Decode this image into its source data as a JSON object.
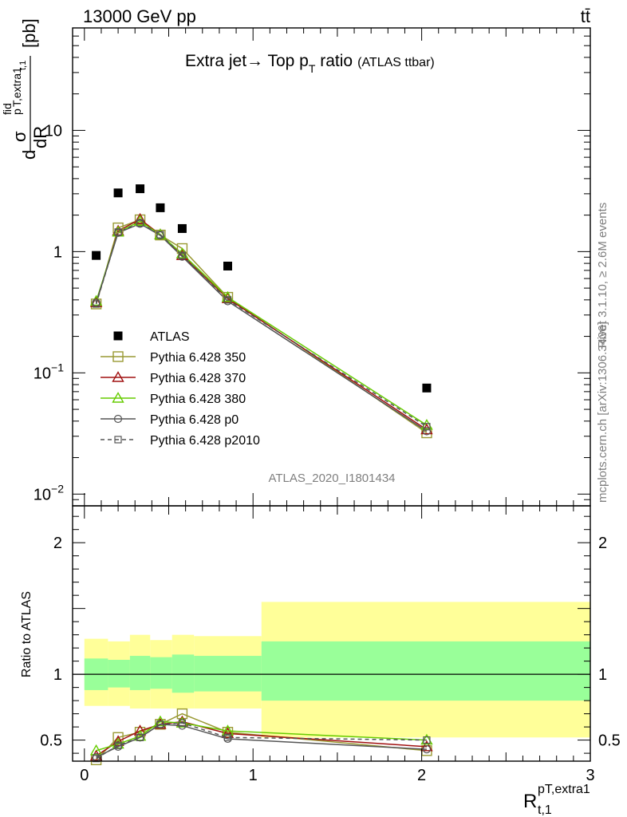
{
  "header": {
    "energy_label": "13000 GeV pp",
    "process_label": "tt̄"
  },
  "side_labels": {
    "rivet": "Rivet 3.1.10, ≥ 2.6M events",
    "mcplots": "mcplots.cern.ch [arXiv:1306.3436]"
  },
  "chart_data": [
    {
      "type": "scatter",
      "title": "Extra jet→ Top p",
      "title_sub": "T",
      "title_tail": " ratio",
      "subtitle": "(ATLAS ttbar)",
      "analysis_id": "ATLAS_2020_I1801434",
      "ylabel": "dσ/dR [pb]",
      "ylabel_parts": {
        "d1": "d",
        "sigma": "σ",
        "sup": "fid",
        "sub": "p",
        "sub2": "T,extra1",
        "sub3": "t,1",
        "dR": "dR",
        "unit": "[pb]"
      },
      "yscale": "log",
      "xlim": [
        -0.07,
        3.0
      ],
      "ylim": [
        0.008,
        70
      ],
      "y_ticks": [
        {
          "value": 0.01,
          "base": "10",
          "exp": "−2"
        },
        {
          "value": 0.1,
          "base": "10",
          "exp": "−1"
        },
        {
          "value": 1,
          "base": "1",
          "exp": ""
        },
        {
          "value": 10,
          "base": "10",
          "exp": ""
        }
      ],
      "legend_position": "left",
      "series": [
        {
          "name": "ATLAS",
          "marker": "square-filled",
          "color": "#000000",
          "x": [
            0.07,
            0.2,
            0.33,
            0.45,
            0.58,
            0.85,
            2.03
          ],
          "y": [
            0.93,
            3.05,
            3.3,
            2.3,
            1.55,
            0.76,
            0.075
          ]
        },
        {
          "name": "Pythia 6.428 350",
          "marker": "square-open",
          "color": "#999933",
          "x": [
            0.07,
            0.2,
            0.33,
            0.45,
            0.58,
            0.85,
            2.03
          ],
          "y": [
            0.37,
            1.57,
            1.83,
            1.37,
            1.06,
            0.42,
            0.032
          ]
        },
        {
          "name": "Pythia 6.428 370",
          "marker": "triangle-open",
          "color": "#a01010",
          "x": [
            0.07,
            0.2,
            0.33,
            0.45,
            0.58,
            0.85,
            2.03
          ],
          "y": [
            0.38,
            1.48,
            1.85,
            1.38,
            0.93,
            0.41,
            0.034
          ]
        },
        {
          "name": "Pythia 6.428 380",
          "marker": "triangle-open",
          "color": "#66cc00",
          "x": [
            0.07,
            0.2,
            0.33,
            0.45,
            0.58,
            0.85,
            2.03
          ],
          "y": [
            0.39,
            1.45,
            1.78,
            1.38,
            0.96,
            0.42,
            0.037
          ]
        },
        {
          "name": "Pythia 6.428 p0",
          "marker": "circle-open",
          "color": "#555555",
          "x": [
            0.07,
            0.2,
            0.33,
            0.45,
            0.58,
            0.85,
            2.03
          ],
          "y": [
            0.38,
            1.43,
            1.7,
            1.36,
            0.91,
            0.39,
            0.033
          ]
        },
        {
          "name": "Pythia 6.428 p2010",
          "marker": "square-open-small",
          "dashed": true,
          "color": "#555555",
          "x": [
            0.07,
            0.2,
            0.33,
            0.45,
            0.58,
            0.85,
            2.03
          ],
          "y": [
            0.37,
            1.45,
            1.72,
            1.38,
            0.93,
            0.4,
            0.036
          ]
        }
      ]
    },
    {
      "type": "line",
      "ylabel": "Ratio to ATLAS",
      "xlabel": "R",
      "xlabel_sup": "pT,extra1",
      "xlabel_sub": "t,1",
      "xlim": [
        -0.07,
        3.0
      ],
      "ylim": [
        0.34,
        2.28
      ],
      "x_ticks": [
        "0",
        "1",
        "2",
        "3"
      ],
      "y_ticks": [
        "0.5",
        "1",
        "2"
      ],
      "bands": {
        "x_edges": [
          0.0,
          0.14,
          0.27,
          0.39,
          0.52,
          0.65,
          1.05,
          3.0
        ],
        "yellow_lo": [
          0.76,
          0.76,
          0.74,
          0.74,
          0.74,
          0.74,
          0.52
        ],
        "yellow_hi": [
          1.27,
          1.25,
          1.3,
          1.26,
          1.3,
          1.29,
          1.55
        ],
        "green_lo": [
          0.88,
          0.9,
          0.88,
          0.89,
          0.86,
          0.87,
          0.8
        ],
        "green_hi": [
          1.12,
          1.11,
          1.14,
          1.13,
          1.15,
          1.14,
          1.25
        ]
      },
      "series": [
        {
          "name": "Pythia 6.428 350",
          "color": "#999933",
          "x": [
            0.07,
            0.2,
            0.33,
            0.45,
            0.58,
            0.85,
            2.03
          ],
          "y": [
            0.35,
            0.52,
            0.56,
            0.62,
            0.7,
            0.56,
            0.42
          ]
        },
        {
          "name": "Pythia 6.428 370",
          "color": "#a01010",
          "x": [
            0.07,
            0.2,
            0.33,
            0.45,
            0.58,
            0.85,
            2.03
          ],
          "y": [
            0.38,
            0.49,
            0.57,
            0.62,
            0.64,
            0.55,
            0.45
          ]
        },
        {
          "name": "Pythia 6.428 380",
          "color": "#66cc00",
          "x": [
            0.07,
            0.2,
            0.33,
            0.45,
            0.58,
            0.85,
            2.03
          ],
          "y": [
            0.42,
            0.47,
            0.53,
            0.64,
            0.63,
            0.57,
            0.5
          ]
        },
        {
          "name": "Pythia 6.428 p0",
          "color": "#555555",
          "x": [
            0.07,
            0.2,
            0.33,
            0.45,
            0.58,
            0.85,
            2.03
          ],
          "y": [
            0.37,
            0.45,
            0.52,
            0.62,
            0.61,
            0.51,
            0.43
          ]
        },
        {
          "name": "Pythia 6.428 p2010",
          "color": "#555555",
          "dashed": true,
          "x": [
            0.07,
            0.2,
            0.33,
            0.45,
            0.58,
            0.85,
            2.03
          ],
          "y": [
            0.36,
            0.46,
            0.52,
            0.62,
            0.63,
            0.52,
            0.5
          ]
        }
      ]
    }
  ]
}
